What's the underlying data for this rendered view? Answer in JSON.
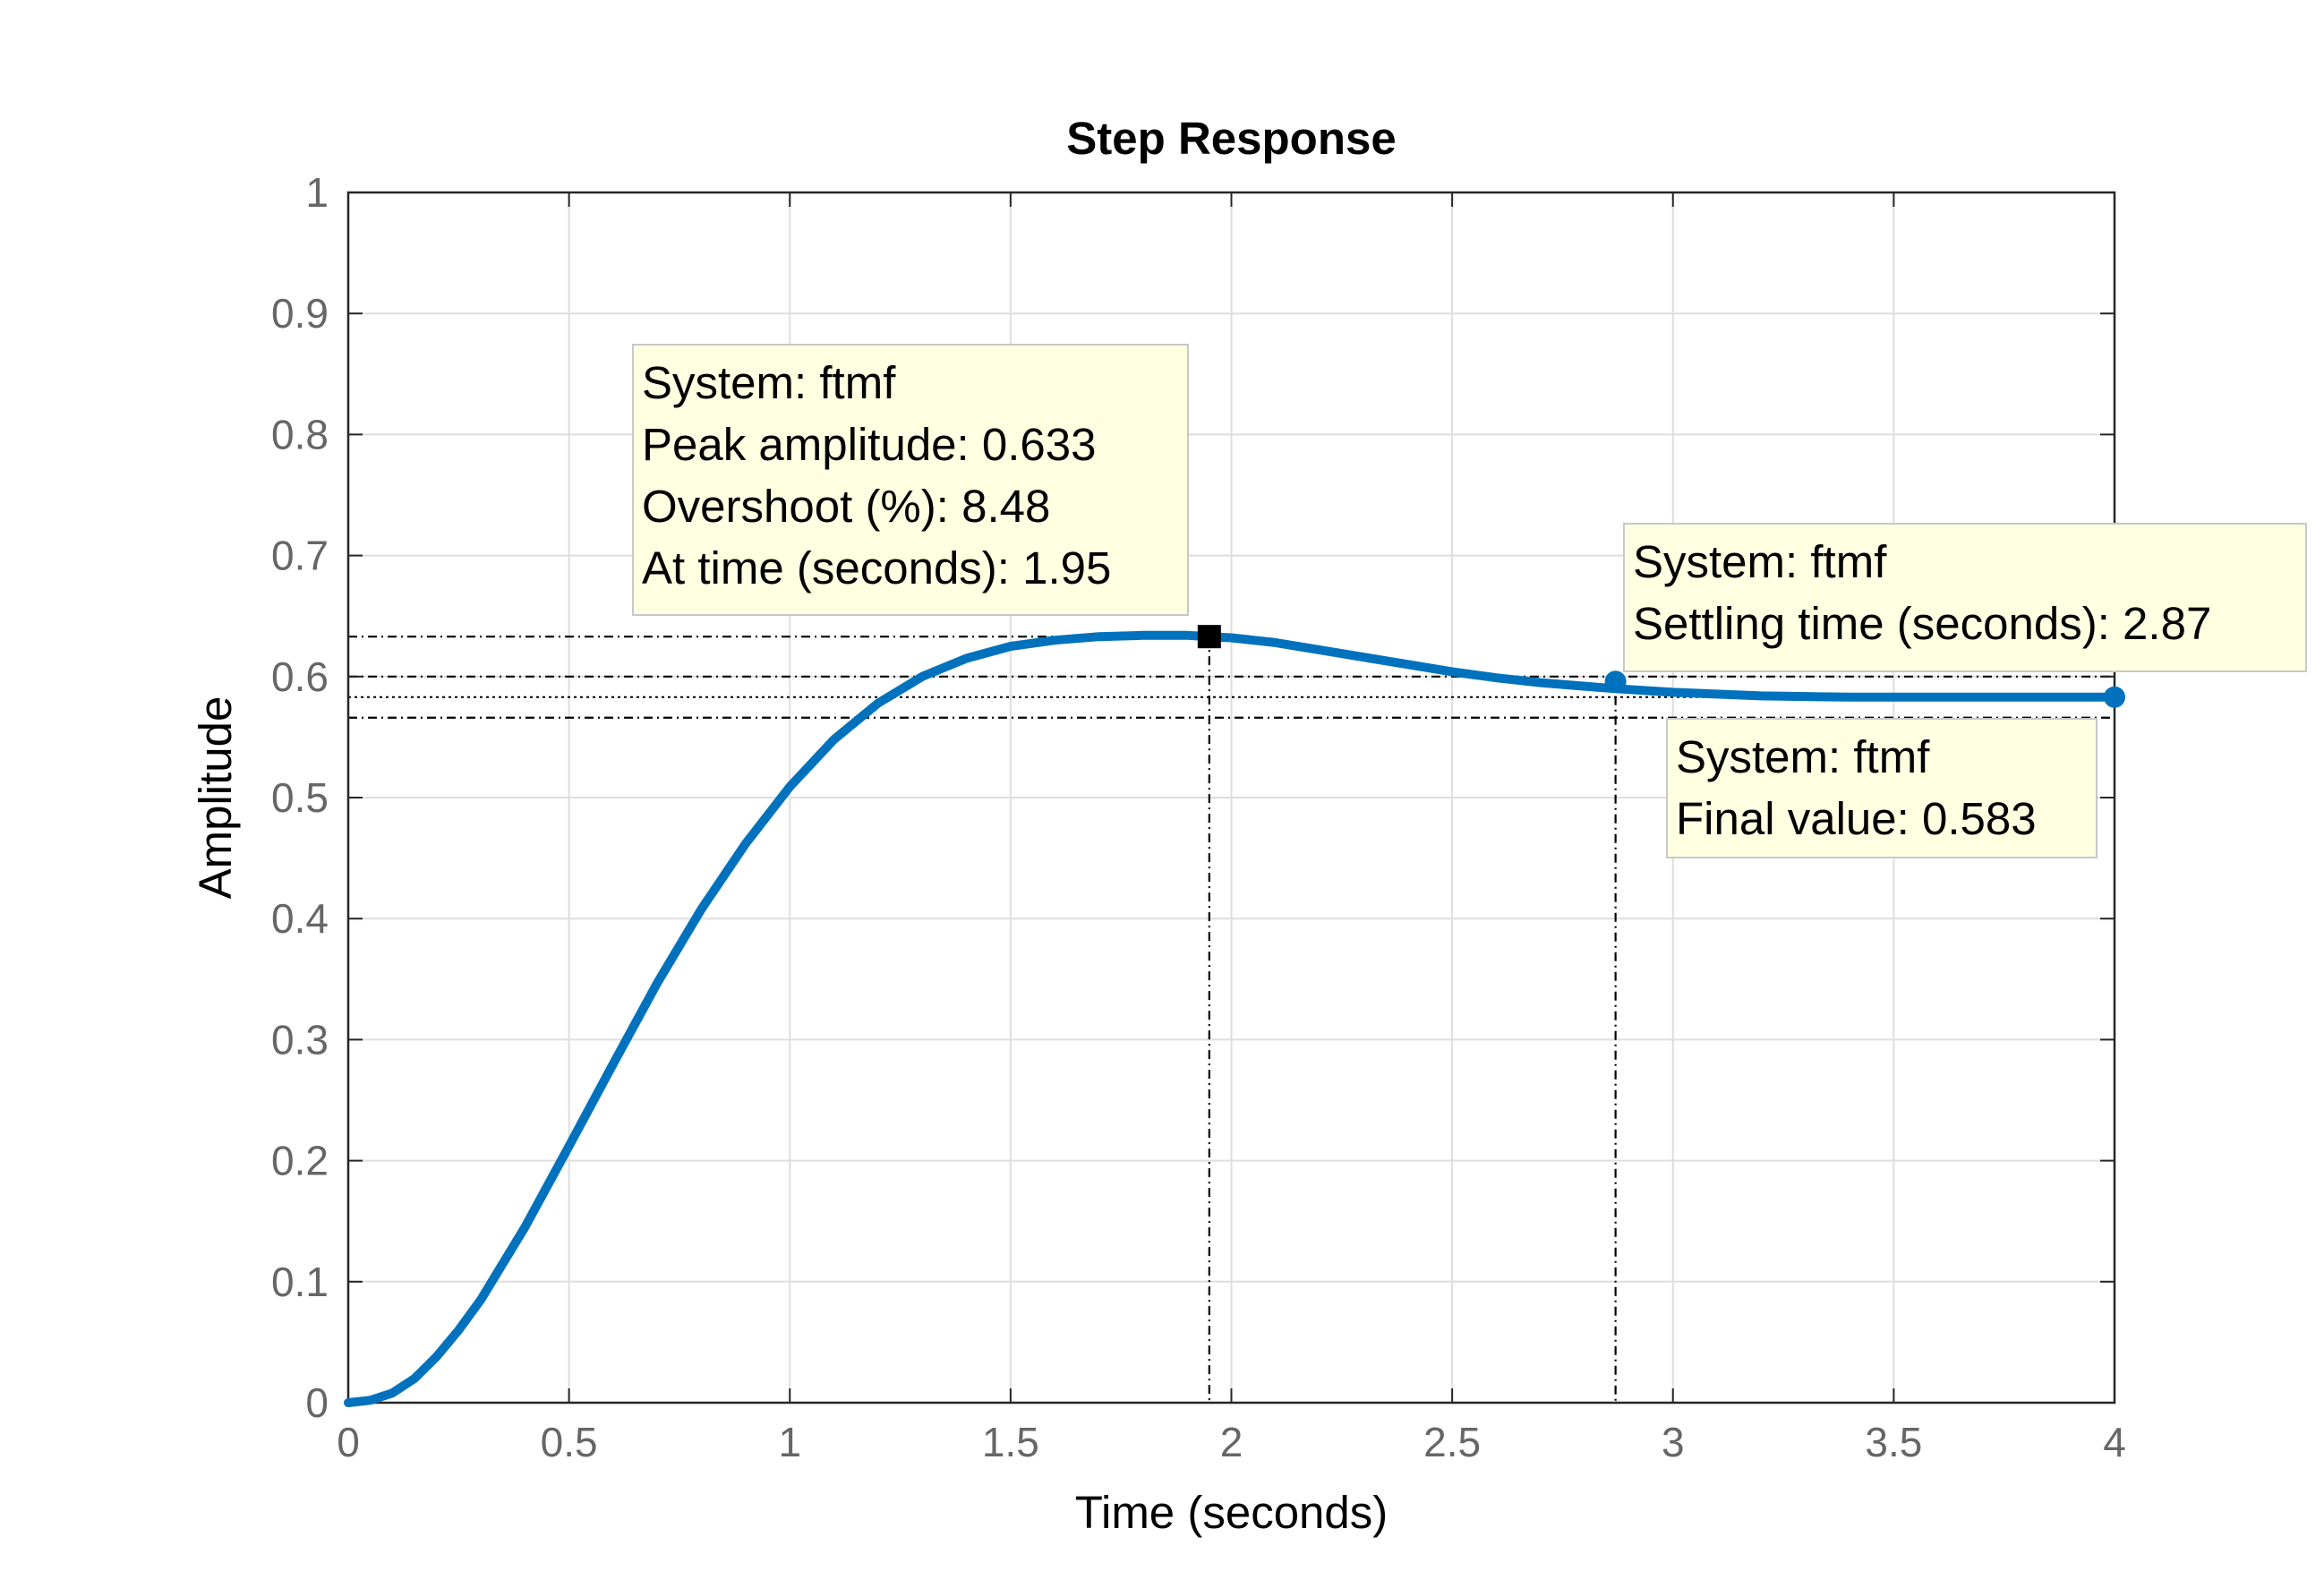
{
  "chart_data": {
    "type": "line",
    "title": "Step Response",
    "xlabel": "Time (seconds)",
    "ylabel": "Amplitude",
    "xlim": [
      0,
      4
    ],
    "ylim": [
      0,
      1
    ],
    "xticks": [
      "0",
      "0.5",
      "1",
      "1.5",
      "2",
      "2.5",
      "3",
      "3.5",
      "4"
    ],
    "yticks": [
      "0",
      "0.1",
      "0.2",
      "0.3",
      "0.4",
      "0.5",
      "0.6",
      "0.7",
      "0.8",
      "0.9",
      "1"
    ],
    "grid": true,
    "series": [
      {
        "x": [
          0,
          0.05,
          0.1,
          0.15,
          0.2,
          0.25,
          0.3,
          0.4,
          0.5,
          0.6,
          0.7,
          0.8,
          0.9,
          1.0,
          1.1,
          1.2,
          1.3,
          1.4,
          1.5,
          1.6,
          1.7,
          1.8,
          1.9,
          1.95,
          2.0,
          2.1,
          2.2,
          2.3,
          2.4,
          2.5,
          2.6,
          2.7,
          2.8,
          2.87,
          3.0,
          3.2,
          3.4,
          3.6,
          3.8,
          4.0
        ],
        "y": [
          0,
          0.002,
          0.008,
          0.02,
          0.038,
          0.06,
          0.085,
          0.145,
          0.212,
          0.28,
          0.347,
          0.408,
          0.462,
          0.509,
          0.548,
          0.578,
          0.6,
          0.615,
          0.625,
          0.63,
          0.633,
          0.634,
          0.634,
          0.633,
          0.632,
          0.628,
          0.622,
          0.616,
          0.61,
          0.604,
          0.599,
          0.595,
          0.592,
          0.59,
          0.587,
          0.584,
          0.583,
          0.583,
          0.583,
          0.583
        ],
        "color": "#0072BD"
      }
    ],
    "reference_lines": {
      "peak_amplitude": 0.633,
      "final_value": 0.583,
      "settling_band": [
        0.566,
        0.6
      ],
      "peak_time": 1.95,
      "settling_time": 2.87
    },
    "annotations": [
      {
        "name": "peak",
        "x": 1.95,
        "y": 0.633,
        "lines": [
          "System: ftmf",
          "Peak amplitude: 0.633",
          "Overshoot (%): 8.48",
          "At time (seconds): 1.95"
        ]
      },
      {
        "name": "settling",
        "x": 2.87,
        "y": 0.596,
        "lines": [
          "System: ftmf",
          "Settling time (seconds): 2.87"
        ]
      },
      {
        "name": "final",
        "x": 4.0,
        "y": 0.583,
        "lines": [
          "System: ftmf",
          "Final value: 0.583"
        ]
      }
    ]
  }
}
